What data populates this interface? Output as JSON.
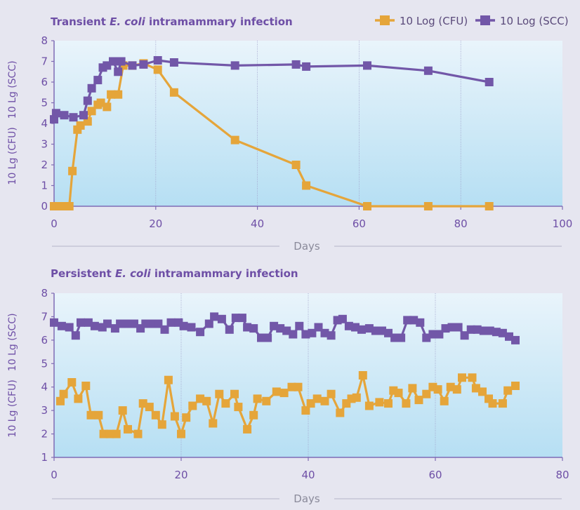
{
  "colors": {
    "cfu": "#e5a53a",
    "scc": "#7257a8",
    "axis": "#7e6bb5",
    "grid": "#9d9dc8",
    "separator": "#b4b4c8",
    "plot_top": "#e9f4fb",
    "plot_bottom": "#b6dff3"
  },
  "legend": {
    "cfu_label": "10 Log (CFU)",
    "scc_label": "10 Log (SCC)"
  },
  "chart_data": [
    {
      "type": "line",
      "title_prefix": "Transient ",
      "title_italic": "E. coli",
      "title_suffix": " intramammary infection",
      "xlabel": "Days",
      "ylabel_cfu": "10 Lg (CFU)",
      "ylabel_scc": "10 Lg (SCC)",
      "xlim": [
        0,
        100
      ],
      "ylim": [
        0,
        8
      ],
      "xticks": [
        0,
        20,
        40,
        60,
        80,
        100
      ],
      "yticks": [
        0,
        1,
        2,
        3,
        4,
        5,
        6,
        7,
        8
      ],
      "vgrid": [
        20,
        40,
        60,
        80
      ],
      "series": [
        {
          "name": "10 Log (CFU)",
          "key": "cfu",
          "points": [
            [
              0,
              0
            ],
            [
              1,
              0
            ],
            [
              2,
              0
            ],
            [
              3,
              0
            ],
            [
              3.6,
              1.7
            ],
            [
              4.6,
              3.7
            ],
            [
              5.2,
              3.9
            ],
            [
              6.6,
              4.1
            ],
            [
              7.4,
              4.6
            ],
            [
              8.6,
              4.9
            ],
            [
              9.2,
              5.0
            ],
            [
              10.4,
              4.8
            ],
            [
              11.2,
              5.4
            ],
            [
              12.6,
              5.4
            ],
            [
              13.6,
              6.8
            ],
            [
              15.4,
              6.8
            ],
            [
              17.6,
              6.9
            ],
            [
              20.4,
              6.6
            ],
            [
              23.6,
              5.5
            ],
            [
              35.6,
              3.2
            ],
            [
              47.6,
              2.0
            ],
            [
              49.6,
              1.0
            ],
            [
              61.6,
              0
            ],
            [
              73.6,
              0
            ],
            [
              85.6,
              0
            ]
          ]
        },
        {
          "name": "10 Log (SCC)",
          "key": "scc",
          "points": [
            [
              0,
              4.2
            ],
            [
              0.4,
              4.5
            ],
            [
              2,
              4.4
            ],
            [
              3.8,
              4.3
            ],
            [
              5.8,
              4.4
            ],
            [
              6.6,
              5.1
            ],
            [
              7.4,
              5.7
            ],
            [
              8.6,
              6.1
            ],
            [
              9.6,
              6.7
            ],
            [
              10.4,
              6.8
            ],
            [
              11.6,
              7.0
            ],
            [
              12.6,
              6.5
            ],
            [
              13.2,
              7.0
            ],
            [
              15.4,
              6.8
            ],
            [
              17.6,
              6.85
            ],
            [
              20.4,
              7.05
            ],
            [
              23.6,
              6.95
            ],
            [
              35.6,
              6.8
            ],
            [
              47.6,
              6.85
            ],
            [
              49.6,
              6.75
            ],
            [
              61.6,
              6.8
            ],
            [
              73.6,
              6.55
            ],
            [
              85.6,
              6.0
            ]
          ]
        }
      ]
    },
    {
      "type": "line",
      "title_prefix": "Persistent ",
      "title_italic": "E. coli",
      "title_suffix": " intramammary infection",
      "xlabel": "Days",
      "ylabel_cfu": "10 Lg (CFU)",
      "ylabel_scc": "10 Lg (SCC)",
      "xlim": [
        0,
        80
      ],
      "ylim": [
        1,
        8
      ],
      "xticks": [
        0,
        20,
        40,
        60,
        80
      ],
      "yticks": [
        1,
        2,
        3,
        4,
        5,
        6,
        7,
        8
      ],
      "vgrid": [
        20,
        40,
        60
      ],
      "series": [
        {
          "name": "10 Log (CFU)",
          "key": "cfu",
          "points": [
            [
              1,
              3.4
            ],
            [
              1.5,
              3.7
            ],
            [
              2.8,
              4.2
            ],
            [
              3.8,
              3.5
            ],
            [
              5,
              4.05
            ],
            [
              5.8,
              2.8
            ],
            [
              7,
              2.8
            ],
            [
              7.8,
              2.0
            ],
            [
              8.8,
              2.0
            ],
            [
              9.8,
              2.0
            ],
            [
              10.8,
              3.0
            ],
            [
              11.6,
              2.2
            ],
            [
              13.2,
              2.0
            ],
            [
              14,
              3.3
            ],
            [
              15,
              3.15
            ],
            [
              16,
              2.8
            ],
            [
              17,
              2.4
            ],
            [
              18,
              4.3
            ],
            [
              19,
              2.75
            ],
            [
              20,
              2.0
            ],
            [
              20.8,
              2.7
            ],
            [
              21.8,
              3.2
            ],
            [
              23,
              3.5
            ],
            [
              24,
              3.4
            ],
            [
              25,
              2.45
            ],
            [
              26,
              3.7
            ],
            [
              27,
              3.3
            ],
            [
              28.4,
              3.7
            ],
            [
              29,
              3.15
            ],
            [
              30.4,
              2.2
            ],
            [
              31.4,
              2.8
            ],
            [
              32,
              3.5
            ],
            [
              33.4,
              3.4
            ],
            [
              35,
              3.8
            ],
            [
              36.2,
              3.75
            ],
            [
              37.4,
              4.0
            ],
            [
              38.4,
              4.0
            ],
            [
              39.6,
              3.0
            ],
            [
              40.4,
              3.3
            ],
            [
              41.4,
              3.5
            ],
            [
              42.6,
              3.4
            ],
            [
              43.6,
              3.7
            ],
            [
              45,
              2.9
            ],
            [
              46,
              3.3
            ],
            [
              46.8,
              3.5
            ],
            [
              47.6,
              3.55
            ],
            [
              48.6,
              4.5
            ],
            [
              49.6,
              3.2
            ],
            [
              51.2,
              3.35
            ],
            [
              52.6,
              3.3
            ],
            [
              53.4,
              3.85
            ],
            [
              54.2,
              3.75
            ],
            [
              55.4,
              3.3
            ],
            [
              56.4,
              3.95
            ],
            [
              57.4,
              3.45
            ],
            [
              58.6,
              3.7
            ],
            [
              59.6,
              4.0
            ],
            [
              60.4,
              3.9
            ],
            [
              61.4,
              3.4
            ],
            [
              62.4,
              4.0
            ],
            [
              63.4,
              3.9
            ],
            [
              64.2,
              4.4
            ],
            [
              65.8,
              4.4
            ],
            [
              66.4,
              3.95
            ],
            [
              67.4,
              3.8
            ],
            [
              68.4,
              3.5
            ],
            [
              69,
              3.3
            ],
            [
              70.6,
              3.3
            ],
            [
              71.4,
              3.85
            ],
            [
              72.6,
              4.05
            ]
          ]
        },
        {
          "name": "10 Log (SCC)",
          "key": "scc",
          "points": [
            [
              0,
              6.75
            ],
            [
              1.2,
              6.6
            ],
            [
              2.4,
              6.55
            ],
            [
              3.4,
              6.2
            ],
            [
              4.2,
              6.75
            ],
            [
              5.4,
              6.75
            ],
            [
              6.4,
              6.6
            ],
            [
              7.6,
              6.55
            ],
            [
              8.4,
              6.7
            ],
            [
              9.6,
              6.5
            ],
            [
              10.4,
              6.7
            ],
            [
              11.6,
              6.7
            ],
            [
              12.6,
              6.7
            ],
            [
              13.6,
              6.5
            ],
            [
              14.4,
              6.7
            ],
            [
              15.6,
              6.7
            ],
            [
              16.4,
              6.7
            ],
            [
              17.4,
              6.45
            ],
            [
              18.4,
              6.75
            ],
            [
              19.6,
              6.75
            ],
            [
              20.4,
              6.6
            ],
            [
              21.6,
              6.55
            ],
            [
              23,
              6.35
            ],
            [
              24.4,
              6.7
            ],
            [
              25.2,
              7.0
            ],
            [
              26.4,
              6.9
            ],
            [
              27.6,
              6.45
            ],
            [
              28.6,
              6.95
            ],
            [
              29.6,
              6.95
            ],
            [
              30.4,
              6.55
            ],
            [
              31.4,
              6.5
            ],
            [
              32.6,
              6.1
            ],
            [
              33.6,
              6.1
            ],
            [
              34.6,
              6.6
            ],
            [
              35.6,
              6.5
            ],
            [
              36.6,
              6.4
            ],
            [
              37.6,
              6.25
            ],
            [
              38.6,
              6.6
            ],
            [
              39.6,
              6.25
            ],
            [
              40.6,
              6.3
            ],
            [
              41.6,
              6.55
            ],
            [
              42.6,
              6.3
            ],
            [
              43.6,
              6.2
            ],
            [
              44.6,
              6.85
            ],
            [
              45.4,
              6.9
            ],
            [
              46.4,
              6.6
            ],
            [
              47.4,
              6.55
            ],
            [
              48.4,
              6.45
            ],
            [
              49.6,
              6.5
            ],
            [
              50.6,
              6.4
            ],
            [
              51.6,
              6.4
            ],
            [
              52.6,
              6.3
            ],
            [
              53.6,
              6.1
            ],
            [
              54.6,
              6.1
            ],
            [
              55.6,
              6.85
            ],
            [
              56.6,
              6.85
            ],
            [
              57.6,
              6.75
            ],
            [
              58.6,
              6.1
            ],
            [
              59.6,
              6.25
            ],
            [
              60.6,
              6.25
            ],
            [
              61.6,
              6.5
            ],
            [
              62.6,
              6.55
            ],
            [
              63.6,
              6.55
            ],
            [
              64.6,
              6.2
            ],
            [
              65.6,
              6.45
            ],
            [
              66.6,
              6.45
            ],
            [
              67.6,
              6.4
            ],
            [
              68.6,
              6.4
            ],
            [
              69.6,
              6.35
            ],
            [
              70.6,
              6.3
            ],
            [
              71.6,
              6.15
            ],
            [
              72.6,
              6.0
            ]
          ]
        }
      ]
    }
  ]
}
